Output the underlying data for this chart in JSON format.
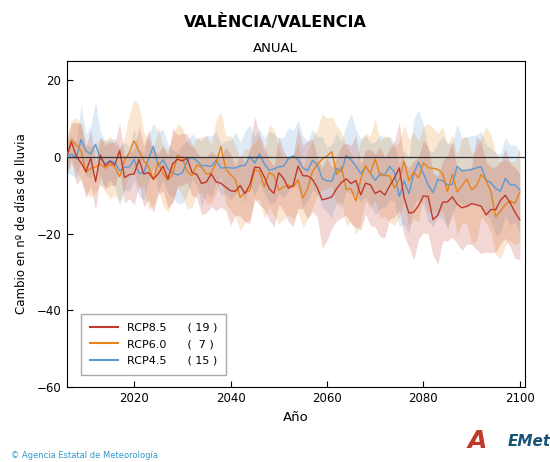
{
  "title": "VALÈNCIA/VALENCIA",
  "subtitle": "ANUAL",
  "xlabel": "Año",
  "ylabel": "Cambio en nº de días de lluvia",
  "xlim": [
    2006,
    2101
  ],
  "ylim": [
    -60,
    25
  ],
  "yticks": [
    -60,
    -40,
    -20,
    0,
    20
  ],
  "xticks": [
    2020,
    2040,
    2060,
    2080,
    2100
  ],
  "rcp85_color": "#c0392b",
  "rcp60_color": "#e8831a",
  "rcp45_color": "#5b9bd5",
  "rcp85_label": "RCP8.5",
  "rcp60_label": "RCP6.0",
  "rcp45_label": "RCP4.5",
  "rcp85_n": "( 19 )",
  "rcp60_n": "(  7 )",
  "rcp45_n": "( 15 )",
  "hline_color": "#333333",
  "bg_color": "#ffffff",
  "copyright_text": "© Agencia Estatal de Meteorología",
  "start_year": 2006,
  "end_year": 2100
}
